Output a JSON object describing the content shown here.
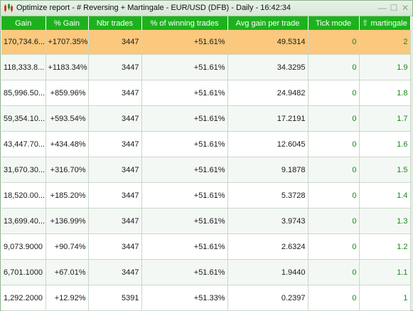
{
  "window": {
    "title": "Optimize report - # Reversing + Martingale - EUR/USD (DFB) - Daily - 16:42:34",
    "minimize_label": "—",
    "maximize_label": "☐",
    "close_label": "✕"
  },
  "table": {
    "columns": [
      "Gain",
      "% Gain",
      "Nbr trades",
      "% of winning trades",
      "Avg gain per trade",
      "Tick mode",
      "martingale"
    ],
    "sort_indicator": "⇧",
    "rows": [
      {
        "gain": "170,734.6...",
        "pct_gain": "+1707.35%",
        "trades": "3447",
        "win_pct": "+51.61%",
        "avg_gain": "49.5314",
        "tick_mode": "0",
        "martingale": "2"
      },
      {
        "gain": "118,333.8...",
        "pct_gain": "+1183.34%",
        "trades": "3447",
        "win_pct": "+51.61%",
        "avg_gain": "34.3295",
        "tick_mode": "0",
        "martingale": "1.9"
      },
      {
        "gain": "85,996.50...",
        "pct_gain": "+859.96%",
        "trades": "3447",
        "win_pct": "+51.61%",
        "avg_gain": "24.9482",
        "tick_mode": "0",
        "martingale": "1.8"
      },
      {
        "gain": "59,354.10...",
        "pct_gain": "+593.54%",
        "trades": "3447",
        "win_pct": "+51.61%",
        "avg_gain": "17.2191",
        "tick_mode": "0",
        "martingale": "1.7"
      },
      {
        "gain": "43,447.70...",
        "pct_gain": "+434.48%",
        "trades": "3447",
        "win_pct": "+51.61%",
        "avg_gain": "12.6045",
        "tick_mode": "0",
        "martingale": "1.6"
      },
      {
        "gain": "31,670.30...",
        "pct_gain": "+316.70%",
        "trades": "3447",
        "win_pct": "+51.61%",
        "avg_gain": "9.1878",
        "tick_mode": "0",
        "martingale": "1.5"
      },
      {
        "gain": "18,520.00...",
        "pct_gain": "+185.20%",
        "trades": "3447",
        "win_pct": "+51.61%",
        "avg_gain": "5.3728",
        "tick_mode": "0",
        "martingale": "1.4"
      },
      {
        "gain": "13,699.40...",
        "pct_gain": "+136.99%",
        "trades": "3447",
        "win_pct": "+51.61%",
        "avg_gain": "3.9743",
        "tick_mode": "0",
        "martingale": "1.3"
      },
      {
        "gain": "9,073.9000",
        "pct_gain": "+90.74%",
        "trades": "3447",
        "win_pct": "+51.61%",
        "avg_gain": "2.6324",
        "tick_mode": "0",
        "martingale": "1.2"
      },
      {
        "gain": "6,701.1000",
        "pct_gain": "+67.01%",
        "trades": "3447",
        "win_pct": "+51.61%",
        "avg_gain": "1.9440",
        "tick_mode": "0",
        "martingale": "1.1"
      },
      {
        "gain": "1,292.2000",
        "pct_gain": "+12.92%",
        "trades": "5391",
        "win_pct": "+51.33%",
        "avg_gain": "0.2397",
        "tick_mode": "0",
        "martingale": "1"
      }
    ]
  },
  "colors": {
    "header_bg": "#1db21d",
    "highlight_row": "#fbc87d",
    "value_green": "#1a8a1a"
  },
  "icons": {
    "app": "candlestick-chart-icon"
  }
}
